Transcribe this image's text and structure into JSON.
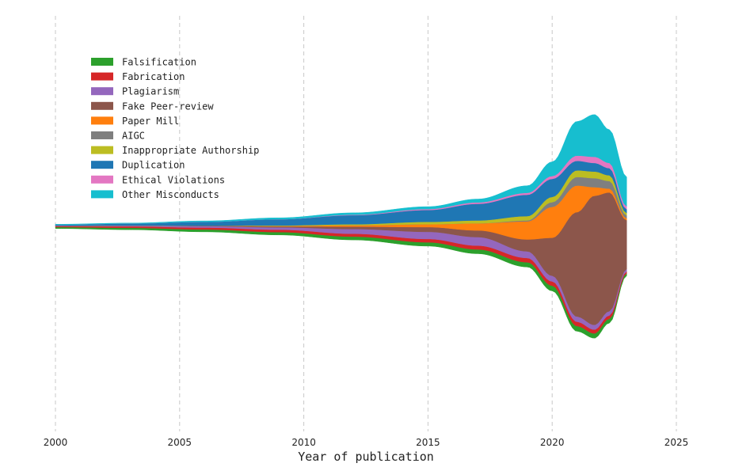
{
  "chart_data": {
    "type": "area",
    "style": "streamgraph",
    "title": "",
    "xlabel": "Year of publication",
    "ylabel": "",
    "xlim": [
      2000,
      2025
    ],
    "xticks": [
      2000,
      2005,
      2010,
      2015,
      2020,
      2025
    ],
    "grid": "vertical dashed",
    "legend_position": "upper-left",
    "x": [
      2000,
      2003,
      2006,
      2009,
      2012,
      2015,
      2017,
      2019,
      2020,
      2021,
      2021.7,
      2022.3,
      2023
    ],
    "series": [
      {
        "name": "Falsification",
        "color": "#2ca02c",
        "values": [
          3,
          4,
          5,
          6,
          7,
          8,
          9,
          10,
          11,
          11,
          10,
          9,
          5
        ]
      },
      {
        "name": "Fabrication",
        "color": "#d62728",
        "values": [
          2,
          3,
          4,
          5,
          6,
          7,
          8,
          9,
          9,
          9,
          8,
          7,
          4
        ]
      },
      {
        "name": "Plagiarism",
        "color": "#9467bd",
        "values": [
          1,
          2,
          3,
          5,
          10,
          15,
          18,
          14,
          12,
          11,
          10,
          9,
          5
        ]
      },
      {
        "name": "Fake Peer-review",
        "color": "#8c564b",
        "values": [
          0,
          0,
          1,
          2,
          5,
          10,
          14,
          25,
          80,
          220,
          272,
          250,
          103
        ]
      },
      {
        "name": "Paper Mill",
        "color": "#ff7f0e",
        "values": [
          0,
          0,
          0,
          1,
          3,
          6,
          15,
          38,
          65,
          56,
          18,
          8,
          4
        ]
      },
      {
        "name": "AIGC",
        "color": "#7f7f7f",
        "values": [
          0,
          0,
          0,
          0,
          0,
          0,
          0,
          2,
          10,
          18,
          19,
          16,
          6
        ]
      },
      {
        "name": "Inappropriate Authorship",
        "color": "#bcbd22",
        "values": [
          0,
          0,
          0,
          1,
          2,
          5,
          6,
          9,
          11,
          14,
          14,
          12,
          5
        ]
      },
      {
        "name": "Duplication",
        "color": "#1f77b4",
        "values": [
          2,
          4,
          8,
          13,
          19,
          25,
          35,
          45,
          38,
          20,
          18,
          15,
          8
        ]
      },
      {
        "name": "Ethical Violations",
        "color": "#e377c2",
        "values": [
          0,
          0,
          0,
          0,
          1,
          2,
          3,
          4,
          6,
          11,
          13,
          11,
          6
        ]
      },
      {
        "name": "Other Misconducts",
        "color": "#17becf",
        "values": [
          1,
          1,
          2,
          3,
          4,
          5,
          7,
          15,
          30,
          72,
          89,
          70,
          62
        ]
      }
    ]
  }
}
